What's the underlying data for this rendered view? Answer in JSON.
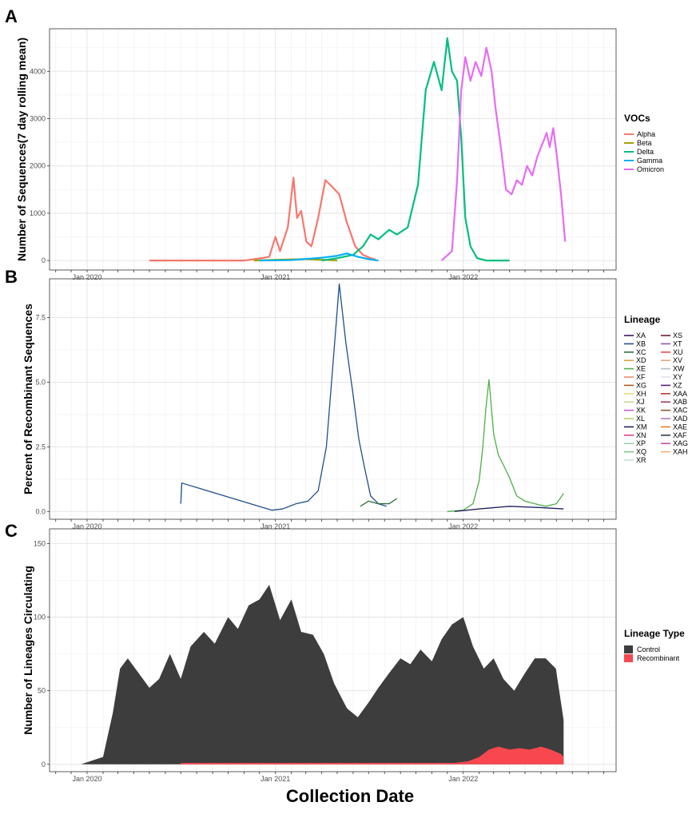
{
  "x_axis_title": "Collection Date",
  "chart_data": [
    {
      "panel": "A",
      "type": "line",
      "ylabel": "Number of Sequences(7 day rolling mean)",
      "xlabel": "",
      "legend_title": "VOCs",
      "legend_position": "right",
      "grid": true,
      "xlim": [
        "2019-10-20",
        "2022-10-25"
      ],
      "ylim": [
        -200,
        4900
      ],
      "x_ticks": [
        "2020-01-01",
        "2021-01-01",
        "2022-01-01"
      ],
      "x_tick_labels": [
        "Jan 2020",
        "Jan 2021",
        "Jan 2022"
      ],
      "y_ticks": [
        0,
        1000,
        2000,
        3000,
        4000
      ],
      "series": [
        {
          "name": "Alpha",
          "color": "#F8766D",
          "x": [
            "2020-05-01",
            "2020-11-01",
            "2020-12-10",
            "2020-12-20",
            "2021-01-01",
            "2021-01-10",
            "2021-01-25",
            "2021-02-05",
            "2021-02-12",
            "2021-02-20",
            "2021-03-02",
            "2021-03-12",
            "2021-03-25",
            "2021-04-08",
            "2021-04-22",
            "2021-05-05",
            "2021-05-20",
            "2021-06-05",
            "2021-06-20",
            "2021-07-05",
            "2021-07-15"
          ],
          "y": [
            0,
            0,
            60,
            80,
            500,
            200,
            700,
            1750,
            900,
            1050,
            400,
            300,
            900,
            1700,
            1550,
            1400,
            800,
            300,
            120,
            50,
            20
          ]
        },
        {
          "name": "Beta",
          "color": "#A3A500",
          "x": [
            "2020-11-20",
            "2021-01-15",
            "2021-03-01",
            "2021-04-15",
            "2021-05-01"
          ],
          "y": [
            0,
            20,
            30,
            10,
            0
          ]
        },
        {
          "name": "Delta",
          "color": "#00BF7D",
          "x": [
            "2021-04-01",
            "2021-05-01",
            "2021-06-01",
            "2021-06-20",
            "2021-07-05",
            "2021-07-20",
            "2021-08-10",
            "2021-08-25",
            "2021-09-15",
            "2021-10-05",
            "2021-10-20",
            "2021-11-05",
            "2021-11-20",
            "2021-12-01",
            "2021-12-10",
            "2021-12-20",
            "2021-12-28",
            "2022-01-05",
            "2022-01-15",
            "2022-01-28",
            "2022-02-15",
            "2022-04-01"
          ],
          "y": [
            0,
            50,
            120,
            300,
            550,
            450,
            650,
            550,
            700,
            1600,
            3600,
            4200,
            3600,
            4700,
            4000,
            3800,
            2600,
            900,
            300,
            50,
            0,
            0
          ]
        },
        {
          "name": "Gamma",
          "color": "#00B0F6",
          "x": [
            "2020-12-01",
            "2021-02-01",
            "2021-04-01",
            "2021-05-01",
            "2021-05-20",
            "2021-06-10",
            "2021-07-01",
            "2021-07-20"
          ],
          "y": [
            0,
            10,
            60,
            100,
            150,
            80,
            30,
            0
          ]
        },
        {
          "name": "Omicron",
          "color": "#E76BF3",
          "x": [
            "2021-11-20",
            "2021-12-10",
            "2021-12-20",
            "2021-12-28",
            "2022-01-05",
            "2022-01-15",
            "2022-01-25",
            "2022-02-05",
            "2022-02-15",
            "2022-02-25",
            "2022-03-05",
            "2022-03-15",
            "2022-03-25",
            "2022-04-05",
            "2022-04-15",
            "2022-04-25",
            "2022-05-05",
            "2022-05-15",
            "2022-05-25",
            "2022-06-05",
            "2022-06-12",
            "2022-06-18",
            "2022-06-25",
            "2022-07-02",
            "2022-07-10",
            "2022-07-18"
          ],
          "y": [
            0,
            200,
            1700,
            3600,
            4300,
            3800,
            4200,
            3900,
            4500,
            4000,
            3200,
            2400,
            1500,
            1400,
            1700,
            1600,
            2000,
            1800,
            2200,
            2500,
            2700,
            2400,
            2800,
            2200,
            1400,
            400
          ]
        }
      ]
    },
    {
      "panel": "B",
      "type": "line",
      "ylabel": "Percent of Recombinant Sequences",
      "xlabel": "",
      "legend_title": "Lineage",
      "legend_position": "right",
      "grid": true,
      "xlim": [
        "2019-10-20",
        "2022-10-25"
      ],
      "ylim": [
        -0.3,
        9
      ],
      "x_ticks": [
        "2020-01-01",
        "2021-01-01",
        "2022-01-01"
      ],
      "x_tick_labels": [
        "Jan 2020",
        "Jan 2021",
        "Jan 2022"
      ],
      "y_ticks": [
        0.0,
        2.5,
        5.0,
        7.5
      ],
      "y_tick_labels": [
        "0.0",
        "2.5",
        "5.0",
        "7.5"
      ],
      "lineages": [
        {
          "name": "XA",
          "color": "#3B1466"
        },
        {
          "name": "XB",
          "color": "#1F4E8C"
        },
        {
          "name": "XC",
          "color": "#2B6E3A"
        },
        {
          "name": "XD",
          "color": "#E6A141"
        },
        {
          "name": "XE",
          "color": "#4DAF4A"
        },
        {
          "name": "XF",
          "color": "#F28E6B"
        },
        {
          "name": "XG",
          "color": "#B85A17"
        },
        {
          "name": "XH",
          "color": "#F2D57F"
        },
        {
          "name": "XJ",
          "color": "#C7D88E"
        },
        {
          "name": "XK",
          "color": "#C65BD1"
        },
        {
          "name": "XL",
          "color": "#B6D36B"
        },
        {
          "name": "XM",
          "color": "#1F1F5E"
        },
        {
          "name": "XN",
          "color": "#E3418A"
        },
        {
          "name": "XP",
          "color": "#9FCCB0"
        },
        {
          "name": "XQ",
          "color": "#7FC97F"
        },
        {
          "name": "XR",
          "color": "#BFE3D6"
        },
        {
          "name": "XS",
          "color": "#6B1E3A"
        },
        {
          "name": "XT",
          "color": "#8E5AA8"
        },
        {
          "name": "XU",
          "color": "#E64B4B"
        },
        {
          "name": "XV",
          "color": "#E0A986"
        },
        {
          "name": "XW",
          "color": "#B4BEC8"
        },
        {
          "name": "XY",
          "color": "#E3E1F0"
        },
        {
          "name": "XZ",
          "color": "#5B1E80"
        },
        {
          "name": "XAA",
          "color": "#C0392B"
        },
        {
          "name": "XAB",
          "color": "#9E3D64"
        },
        {
          "name": "XAC",
          "color": "#8C5A2B"
        },
        {
          "name": "XAD",
          "color": "#B07AC4"
        },
        {
          "name": "XAE",
          "color": "#E67E22"
        },
        {
          "name": "XAF",
          "color": "#2C3E50"
        },
        {
          "name": "XAG",
          "color": "#C94FA0"
        },
        {
          "name": "XAH",
          "color": "#F0B27A"
        }
      ],
      "series": [
        {
          "name": "XB",
          "x": [
            "2020-07-01",
            "2020-07-03",
            "2020-12-25",
            "2021-01-15",
            "2021-02-10",
            "2021-03-05",
            "2021-03-25",
            "2021-04-10",
            "2021-04-22",
            "2021-05-05",
            "2021-05-18",
            "2021-06-01",
            "2021-06-12",
            "2021-06-22",
            "2021-07-05",
            "2021-07-20",
            "2021-08-05"
          ],
          "y": [
            0.3,
            1.1,
            0.05,
            0.1,
            0.3,
            0.4,
            0.8,
            2.5,
            5.5,
            8.8,
            6.5,
            4.5,
            2.8,
            1.8,
            0.6,
            0.3,
            0.2
          ]
        },
        {
          "name": "XC",
          "x": [
            "2021-06-15",
            "2021-07-01",
            "2021-07-20",
            "2021-08-10",
            "2021-08-25"
          ],
          "y": [
            0.2,
            0.4,
            0.3,
            0.3,
            0.5
          ]
        },
        {
          "name": "XE",
          "x": [
            "2021-12-01",
            "2022-01-01",
            "2022-01-20",
            "2022-02-01",
            "2022-02-08",
            "2022-02-14",
            "2022-02-20",
            "2022-03-01",
            "2022-03-10",
            "2022-03-20",
            "2022-04-01",
            "2022-04-15",
            "2022-05-01",
            "2022-05-20",
            "2022-06-10",
            "2022-07-01",
            "2022-07-15"
          ],
          "y": [
            0.0,
            0.05,
            0.3,
            1.2,
            2.5,
            4.0,
            5.1,
            3.0,
            2.2,
            1.8,
            1.3,
            0.6,
            0.4,
            0.3,
            0.2,
            0.3,
            0.7
          ]
        },
        {
          "name": "XM",
          "x": [
            "2021-12-15",
            "2022-02-01",
            "2022-04-01",
            "2022-06-01",
            "2022-07-15"
          ],
          "y": [
            0.0,
            0.1,
            0.2,
            0.15,
            0.1
          ]
        }
      ]
    },
    {
      "panel": "C",
      "type": "area",
      "ylabel": "Number of Lineages Circulating",
      "xlabel": "Collection Date",
      "legend_title": "Lineage Type",
      "legend_position": "right",
      "grid": true,
      "xlim": [
        "2019-10-20",
        "2022-10-25"
      ],
      "ylim": [
        -5,
        160
      ],
      "x_ticks": [
        "2020-01-01",
        "2021-01-01",
        "2022-01-01"
      ],
      "x_tick_labels": [
        "Jan 2020",
        "Jan 2021",
        "Jan 2022"
      ],
      "y_ticks": [
        0,
        50,
        100,
        150
      ],
      "series": [
        {
          "name": "Control",
          "color": "#3D3D3D",
          "x": [
            "2019-12-20",
            "2020-02-01",
            "2020-02-20",
            "2020-03-05",
            "2020-03-20",
            "2020-04-10",
            "2020-05-01",
            "2020-05-20",
            "2020-06-10",
            "2020-07-01",
            "2020-07-20",
            "2020-08-15",
            "2020-09-05",
            "2020-10-01",
            "2020-10-20",
            "2020-11-10",
            "2020-12-01",
            "2020-12-20",
            "2021-01-10",
            "2021-02-01",
            "2021-02-20",
            "2021-03-15",
            "2021-04-05",
            "2021-04-25",
            "2021-05-20",
            "2021-06-10",
            "2021-07-01",
            "2021-07-20",
            "2021-08-10",
            "2021-09-01",
            "2021-09-20",
            "2021-10-10",
            "2021-11-01",
            "2021-11-20",
            "2021-12-10",
            "2022-01-01",
            "2022-01-20",
            "2022-02-10",
            "2022-03-01",
            "2022-03-20",
            "2022-04-10",
            "2022-05-01",
            "2022-05-20",
            "2022-06-10",
            "2022-06-30",
            "2022-07-15"
          ],
          "y": [
            0,
            5,
            35,
            65,
            72,
            62,
            52,
            58,
            75,
            58,
            80,
            90,
            82,
            100,
            92,
            108,
            112,
            122,
            98,
            112,
            90,
            88,
            75,
            55,
            38,
            32,
            42,
            52,
            62,
            72,
            68,
            78,
            70,
            85,
            95,
            100,
            80,
            65,
            72,
            58,
            50,
            62,
            72,
            72,
            65,
            30
          ]
        },
        {
          "name": "Recombinant",
          "color": "#F8474F",
          "x": [
            "2020-07-01",
            "2020-09-01",
            "2020-11-01",
            "2021-01-01",
            "2021-03-01",
            "2021-05-01",
            "2021-07-01",
            "2021-09-01",
            "2021-11-01",
            "2021-12-15",
            "2022-01-10",
            "2022-02-01",
            "2022-02-20",
            "2022-03-10",
            "2022-04-01",
            "2022-04-20",
            "2022-05-10",
            "2022-06-01",
            "2022-06-20",
            "2022-07-10",
            "2022-07-15"
          ],
          "y": [
            1,
            1,
            1,
            1,
            1,
            1,
            1,
            1,
            1,
            1,
            2,
            5,
            10,
            12,
            10,
            11,
            10,
            12,
            10,
            7,
            5
          ]
        }
      ]
    }
  ]
}
